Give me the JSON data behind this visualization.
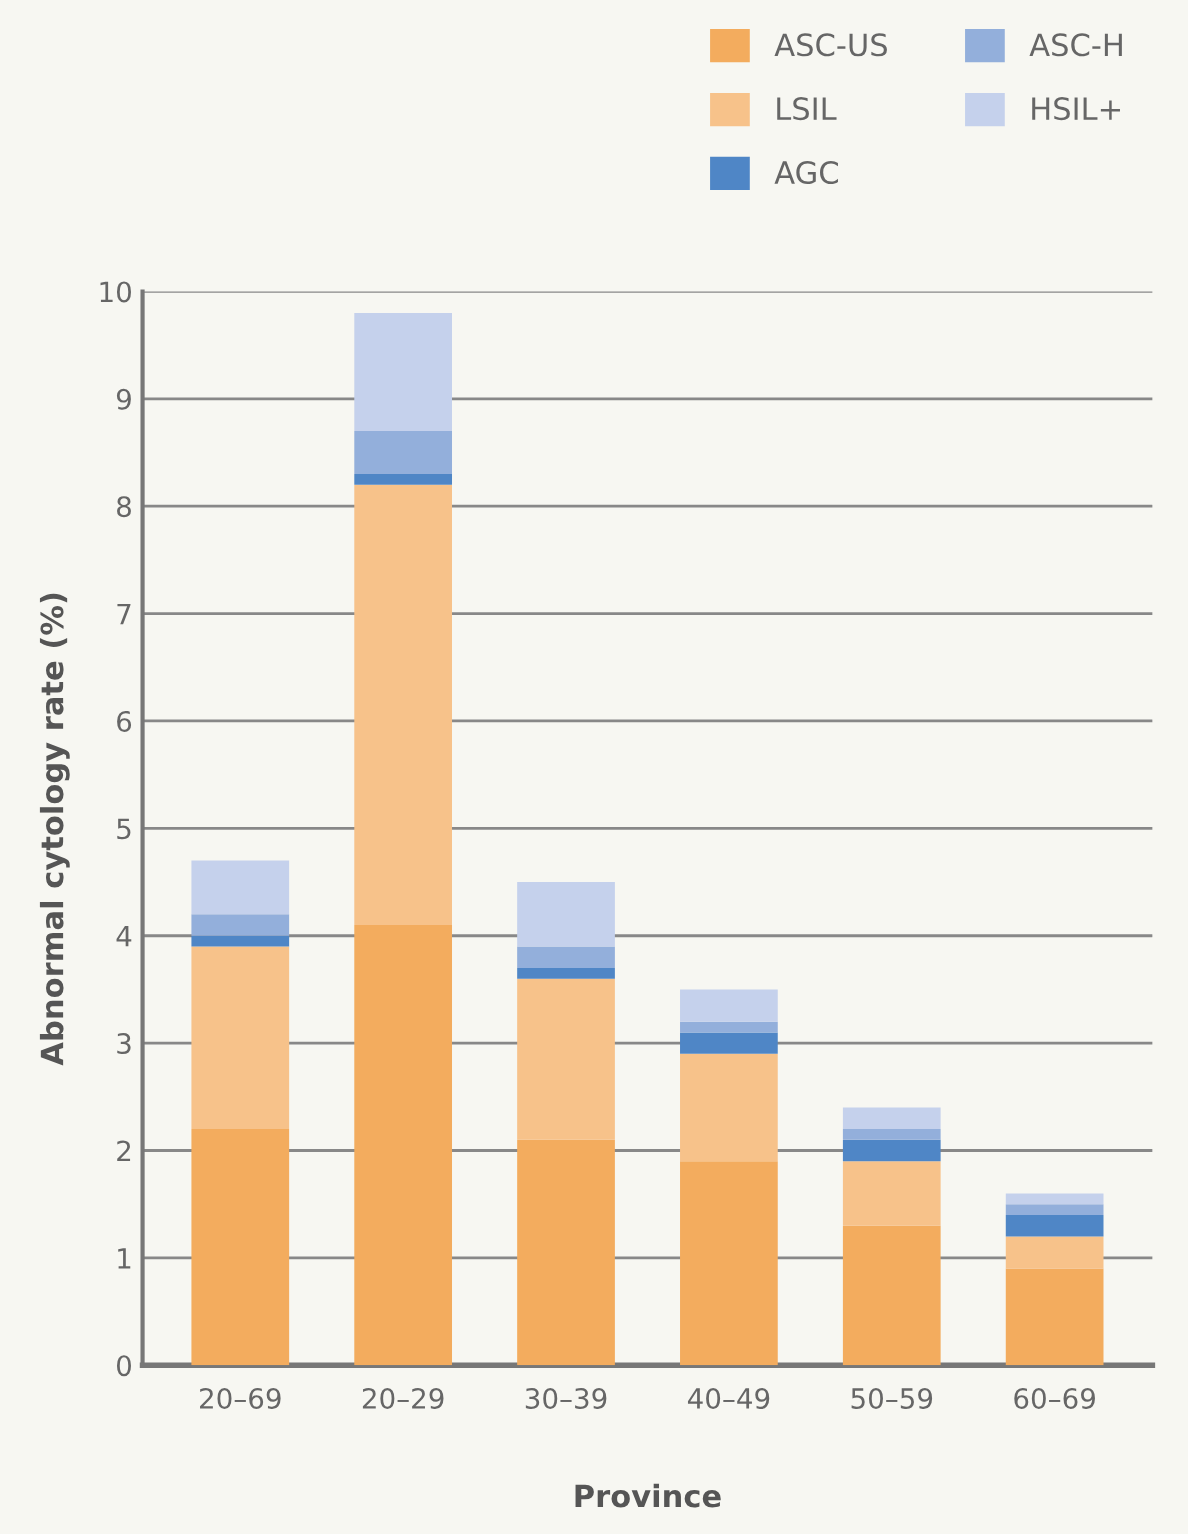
{
  "chart_data": {
    "type": "bar",
    "stacked": true,
    "xlabel": "Province",
    "ylabel": "Abnormal cytology rate (%)",
    "categories": [
      "20–69",
      "20–29",
      "30–39",
      "40–49",
      "50–59",
      "60–69"
    ],
    "series": [
      {
        "name": "ASC-US",
        "color": "#f3ac5e",
        "values": [
          2.2,
          4.1,
          2.1,
          1.9,
          1.3,
          0.9
        ]
      },
      {
        "name": "LSIL",
        "color": "#f7c28a",
        "values": [
          1.7,
          4.1,
          1.5,
          1.0,
          0.6,
          0.3
        ]
      },
      {
        "name": "AGC",
        "color": "#4f86c6",
        "values": [
          0.1,
          0.1,
          0.1,
          0.2,
          0.2,
          0.2
        ]
      },
      {
        "name": "ASC-H",
        "color": "#93afdb",
        "values": [
          0.2,
          0.4,
          0.2,
          0.1,
          0.1,
          0.1
        ]
      },
      {
        "name": "HSIL+",
        "color": "#c5d1ec",
        "values": [
          0.5,
          1.1,
          0.6,
          0.3,
          0.2,
          0.1
        ]
      }
    ],
    "ylim": [
      0,
      10
    ],
    "yticks": [
      0,
      1,
      2,
      3,
      4,
      5,
      6,
      7,
      8,
      9,
      10
    ],
    "grid": "y",
    "legend": "top right"
  }
}
